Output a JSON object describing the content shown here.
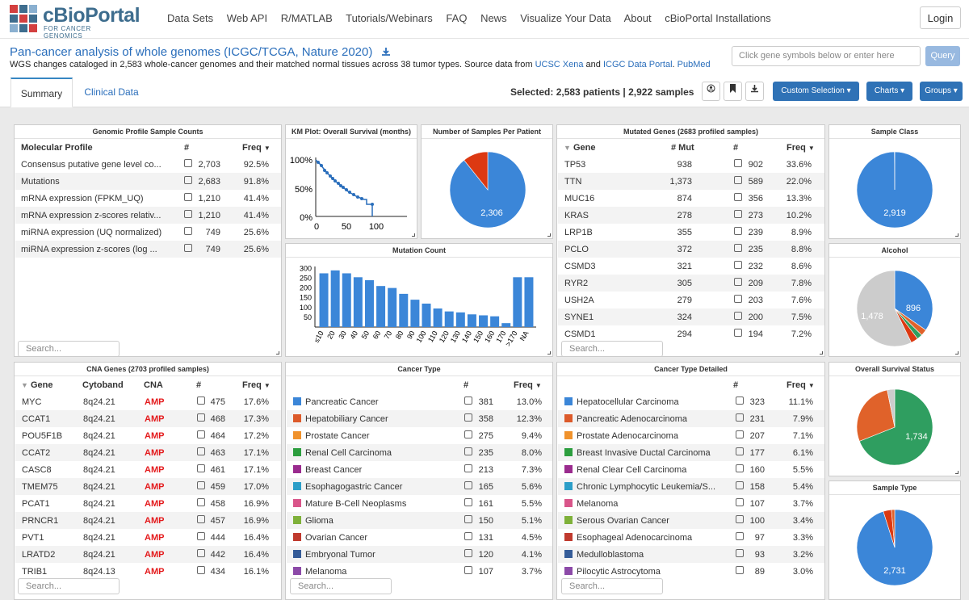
{
  "nav": {
    "logo_title": "cBioPortal",
    "logo_subtitle": "FOR CANCER GENOMICS",
    "links": [
      "Data Sets",
      "Web API",
      "R/MATLAB",
      "Tutorials/Webinars",
      "FAQ",
      "News",
      "Visualize Your Data",
      "About",
      "cBioPortal Installations"
    ],
    "login": "Login"
  },
  "study": {
    "title": "Pan-cancer analysis of whole genomes (ICGC/TCGA, Nature 2020)",
    "desc_pre": "WGS changes cataloged in 2,583 whole-cancer genomes and their matched normal tissues across 38 tumor types. Source data from ",
    "link1": "UCSC Xena",
    "desc_and": " and ",
    "link2": "ICGC Data Portal",
    "desc_dot": ".",
    "link3": "PubMed",
    "query_placeholder": "Click gene symbols below or enter here",
    "query_btn": "Query"
  },
  "tabs": [
    "Summary",
    "Clinical Data"
  ],
  "selection": {
    "label": "Selected: 2,583 patients | 2,922 samples",
    "buttons": [
      "Custom Selection",
      "Charts",
      "Groups"
    ]
  },
  "colors": {
    "blue": "#3b86d8",
    "orange": "#e0622a",
    "green": "#2f9e60",
    "red": "#dc3912",
    "gray": "#ccc"
  },
  "genomic": {
    "title": "Genomic Profile Sample Counts",
    "headers": [
      "Molecular Profile",
      "#",
      "Freq"
    ],
    "rows": [
      [
        "Consensus putative gene level co...",
        "2,703",
        "92.5%"
      ],
      [
        "Mutations",
        "2,683",
        "91.8%"
      ],
      [
        "mRNA expression (FPKM_UQ)",
        "1,210",
        "41.4%"
      ],
      [
        "mRNA expression z-scores relativ...",
        "1,210",
        "41.4%"
      ],
      [
        "miRNA expression (UQ normalized)",
        "749",
        "25.6%"
      ],
      [
        "miRNA expression z-scores (log ...",
        "749",
        "25.6%"
      ]
    ],
    "search": "Search..."
  },
  "km": {
    "title": "KM Plot: Overall Survival (months)",
    "yticks": [
      "100%",
      "50%",
      "0%"
    ],
    "xticks": [
      "0",
      "50",
      "100"
    ]
  },
  "spp": {
    "title": "Number of Samples Per Patient",
    "label": "2,306"
  },
  "mutated": {
    "title": "Mutated Genes (2683 profiled samples)",
    "headers": [
      "Gene",
      "# Mut",
      "#",
      "Freq"
    ],
    "rows": [
      [
        "TP53",
        "938",
        "902",
        "33.6%"
      ],
      [
        "TTN",
        "1,373",
        "589",
        "22.0%"
      ],
      [
        "MUC16",
        "874",
        "356",
        "13.3%"
      ],
      [
        "KRAS",
        "278",
        "273",
        "10.2%"
      ],
      [
        "LRP1B",
        "355",
        "239",
        "8.9%"
      ],
      [
        "PCLO",
        "372",
        "235",
        "8.8%"
      ],
      [
        "CSMD3",
        "321",
        "232",
        "8.6%"
      ],
      [
        "RYR2",
        "305",
        "209",
        "7.8%"
      ],
      [
        "USH2A",
        "279",
        "203",
        "7.6%"
      ],
      [
        "SYNE1",
        "324",
        "200",
        "7.5%"
      ],
      [
        "CSMD1",
        "294",
        "194",
        "7.2%"
      ]
    ],
    "search": "Search..."
  },
  "sampleclass": {
    "title": "Sample Class",
    "label": "2,919"
  },
  "alcohol": {
    "title": "Alcohol",
    "label1": "896",
    "label2": "1,478"
  },
  "mutcount": {
    "title": "Mutation Count",
    "yticks": [
      "300",
      "250",
      "200",
      "150",
      "100",
      "50"
    ],
    "xticks": [
      "≤10",
      "20",
      "30",
      "40",
      "50",
      "60",
      "70",
      "80",
      "90",
      "100",
      "110",
      "120",
      "130",
      "140",
      "150",
      "160",
      "170",
      ">170",
      "NA"
    ]
  },
  "chart_data": [
    {
      "type": "bar",
      "title": "Mutation Count",
      "categories": [
        "≤10",
        "20",
        "30",
        "40",
        "50",
        "60",
        "70",
        "80",
        "90",
        "100",
        "110",
        "120",
        "130",
        "140",
        "150",
        "160",
        "170",
        ">170",
        "NA"
      ],
      "values": [
        275,
        290,
        275,
        255,
        240,
        210,
        200,
        170,
        140,
        120,
        95,
        80,
        75,
        65,
        60,
        55,
        20,
        255,
        255
      ],
      "ylim": [
        0,
        310
      ]
    },
    {
      "type": "pie",
      "title": "Number of Samples Per Patient",
      "values": [
        2306,
        277
      ],
      "labels": [
        "2,306",
        ""
      ]
    },
    {
      "type": "pie",
      "title": "Sample Class",
      "values": [
        2919,
        3
      ],
      "labels": [
        "2,919",
        ""
      ]
    },
    {
      "type": "pie",
      "title": "Alcohol",
      "values": [
        896,
        70,
        60,
        80,
        1478
      ],
      "labels": [
        "896",
        "",
        "",
        "",
        "1,478"
      ]
    },
    {
      "type": "pie",
      "title": "Overall Survival Status",
      "values": [
        1734,
        700,
        80
      ],
      "labels": [
        "1,734",
        "",
        ""
      ]
    },
    {
      "type": "pie",
      "title": "Sample Type",
      "values": [
        2731,
        100,
        40
      ],
      "labels": [
        "2,731",
        "",
        ""
      ]
    }
  ],
  "cna": {
    "title": "CNA Genes (2703 profiled samples)",
    "headers": [
      "Gene",
      "Cytoband",
      "CNA",
      "#",
      "Freq"
    ],
    "rows": [
      [
        "MYC",
        "8q24.21",
        "AMP",
        "475",
        "17.6%"
      ],
      [
        "CCAT1",
        "8q24.21",
        "AMP",
        "468",
        "17.3%"
      ],
      [
        "POU5F1B",
        "8q24.21",
        "AMP",
        "464",
        "17.2%"
      ],
      [
        "CCAT2",
        "8q24.21",
        "AMP",
        "463",
        "17.1%"
      ],
      [
        "CASC8",
        "8q24.21",
        "AMP",
        "461",
        "17.1%"
      ],
      [
        "TMEM75",
        "8q24.21",
        "AMP",
        "459",
        "17.0%"
      ],
      [
        "PCAT1",
        "8q24.21",
        "AMP",
        "458",
        "16.9%"
      ],
      [
        "PRNCR1",
        "8q24.21",
        "AMP",
        "457",
        "16.9%"
      ],
      [
        "PVT1",
        "8q24.21",
        "AMP",
        "444",
        "16.4%"
      ],
      [
        "LRATD2",
        "8q24.21",
        "AMP",
        "442",
        "16.4%"
      ],
      [
        "TRIB1",
        "8q24.13",
        "AMP",
        "434",
        "16.1%"
      ]
    ],
    "search": "Search..."
  },
  "cancertype": {
    "title": "Cancer Type",
    "headers": [
      "#",
      "Freq"
    ],
    "rows": [
      [
        "Pancreatic Cancer",
        "381",
        "13.0%",
        "#3b86d8"
      ],
      [
        "Hepatobiliary Cancer",
        "358",
        "12.3%",
        "#dc5a2a"
      ],
      [
        "Prostate Cancer",
        "275",
        "9.4%",
        "#f0922c"
      ],
      [
        "Renal Cell Carcinoma",
        "235",
        "8.0%",
        "#2c9e3e"
      ],
      [
        "Breast Cancer",
        "213",
        "7.3%",
        "#9a2b8e"
      ],
      [
        "Esophagogastric Cancer",
        "165",
        "5.6%",
        "#2c9ec8"
      ],
      [
        "Mature B-Cell Neoplasms",
        "161",
        "5.5%",
        "#d9558a"
      ],
      [
        "Glioma",
        "150",
        "5.1%",
        "#7fb13a"
      ],
      [
        "Ovarian Cancer",
        "131",
        "4.5%",
        "#c03a2e"
      ],
      [
        "Embryonal Tumor",
        "120",
        "4.1%",
        "#355c98"
      ],
      [
        "Melanoma",
        "107",
        "3.7%",
        "#8c4aa8"
      ]
    ],
    "search": "Search..."
  },
  "cancerdetail": {
    "title": "Cancer Type Detailed",
    "headers": [
      "#",
      "Freq"
    ],
    "rows": [
      [
        "Hepatocellular Carcinoma",
        "323",
        "11.1%",
        "#3b86d8"
      ],
      [
        "Pancreatic Adenocarcinoma",
        "231",
        "7.9%",
        "#dc5a2a"
      ],
      [
        "Prostate Adenocarcinoma",
        "207",
        "7.1%",
        "#f0922c"
      ],
      [
        "Breast Invasive Ductal Carcinoma",
        "177",
        "6.1%",
        "#2c9e3e"
      ],
      [
        "Renal Clear Cell Carcinoma",
        "160",
        "5.5%",
        "#9a2b8e"
      ],
      [
        "Chronic Lymphocytic Leukemia/S...",
        "158",
        "5.4%",
        "#2c9ec8"
      ],
      [
        "Melanoma",
        "107",
        "3.7%",
        "#d9558a"
      ],
      [
        "Serous Ovarian Cancer",
        "100",
        "3.4%",
        "#7fb13a"
      ],
      [
        "Esophageal Adenocarcinoma",
        "97",
        "3.3%",
        "#c03a2e"
      ],
      [
        "Medulloblastoma",
        "93",
        "3.2%",
        "#355c98"
      ],
      [
        "Pilocytic Astrocytoma",
        "89",
        "3.0%",
        "#8c4aa8"
      ]
    ],
    "search": "Search..."
  },
  "survival": {
    "title": "Overall Survival Status",
    "label": "1,734"
  },
  "sampletype": {
    "title": "Sample Type",
    "label": "2,731"
  }
}
